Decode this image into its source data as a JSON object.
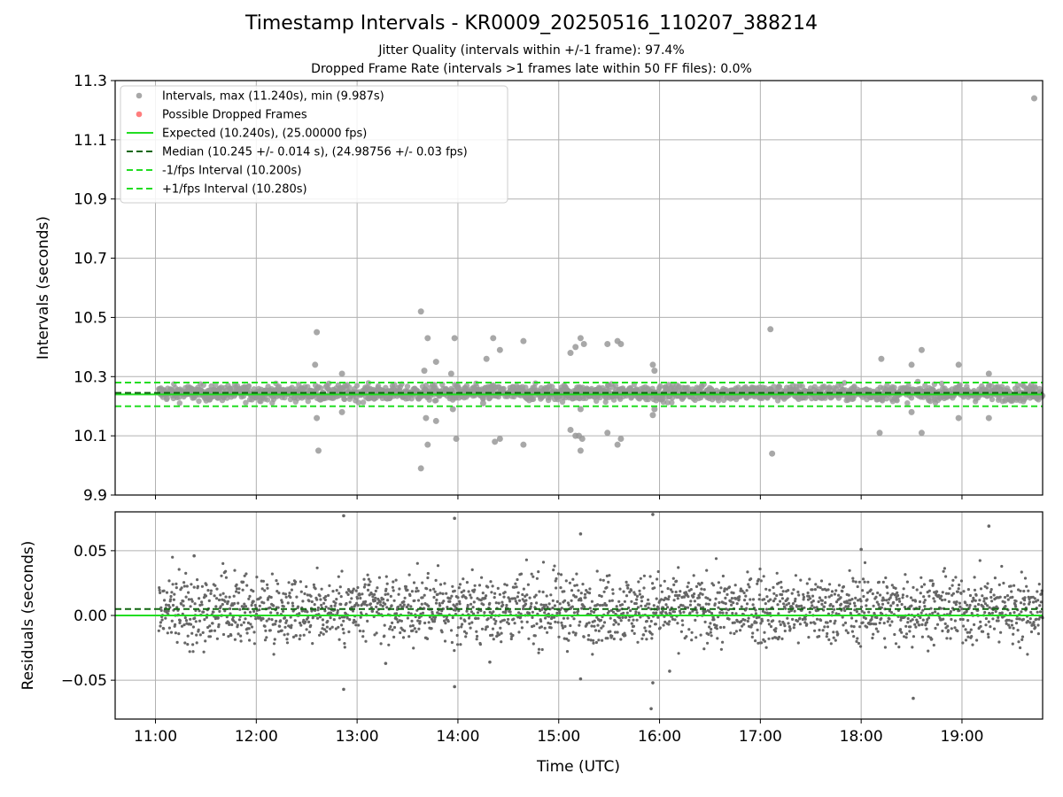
{
  "figure": {
    "title": "Timestamp Intervals - KR0009_20250516_110207_388214",
    "subtitle1": "Jitter Quality (intervals within +/-1 frame): 97.4%",
    "subtitle2": "Dropped Frame Rate (intervals >1 frames late within 50 FF files): 0.0%"
  },
  "colors": {
    "points": "#999999",
    "dropped": "#ff6666",
    "expected": "#22dd22",
    "median": "#116611",
    "band": "#22dd22",
    "residual": "#666666",
    "grid": "#b0b0b0"
  },
  "chart_data": [
    {
      "type": "scatter",
      "xlabel": "",
      "ylabel": "Intervals (seconds)",
      "x_range": [
        "10:36",
        "19:48"
      ],
      "ylim": [
        9.9,
        11.3
      ],
      "yticks": [
        9.9,
        10.1,
        10.3,
        10.5,
        10.7,
        10.9,
        11.1,
        11.3
      ],
      "ytick_labels": [
        "9.9",
        "10.1",
        "10.3",
        "10.5",
        "10.7",
        "10.9",
        "11.1",
        "11.3"
      ],
      "grid": true,
      "legend_position": "top-left",
      "legend": [
        {
          "label": "Intervals, max (11.240s), min (9.987s)",
          "style": "marker",
          "color": "#999999"
        },
        {
          "label": "Possible Dropped Frames",
          "style": "marker",
          "color": "#ff6666"
        },
        {
          "label": "Expected (10.240s), (25.00000 fps)",
          "style": "solid",
          "color": "#22dd22"
        },
        {
          "label": "Median (10.245 +/- 0.014 s), (24.98756 +/- 0.03 fps)",
          "style": "dashed",
          "color": "#116611"
        },
        {
          "label": "-1/fps Interval (10.200s)",
          "style": "dashed",
          "color": "#22dd22"
        },
        {
          "label": "+1/fps Interval (10.280s)",
          "style": "dashed",
          "color": "#22dd22"
        }
      ],
      "reference_lines": {
        "expected": 10.24,
        "median": 10.245,
        "minus_one_frame": 10.2,
        "plus_one_frame": 10.28
      },
      "outliers": [
        {
          "t": "12:36",
          "y": 10.45
        },
        {
          "t": "12:35",
          "y": 10.34
        },
        {
          "t": "12:36",
          "y": 10.16
        },
        {
          "t": "12:37",
          "y": 10.05
        },
        {
          "t": "12:51",
          "y": 10.31
        },
        {
          "t": "12:51",
          "y": 10.18
        },
        {
          "t": "13:38",
          "y": 10.52
        },
        {
          "t": "13:38",
          "y": 9.99
        },
        {
          "t": "13:42",
          "y": 10.43
        },
        {
          "t": "13:42",
          "y": 10.07
        },
        {
          "t": "13:40",
          "y": 10.32
        },
        {
          "t": "13:47",
          "y": 10.35
        },
        {
          "t": "13:41",
          "y": 10.16
        },
        {
          "t": "13:47",
          "y": 10.15
        },
        {
          "t": "13:58",
          "y": 10.43
        },
        {
          "t": "13:59",
          "y": 10.09
        },
        {
          "t": "13:56",
          "y": 10.31
        },
        {
          "t": "13:57",
          "y": 10.19
        },
        {
          "t": "14:17",
          "y": 10.36
        },
        {
          "t": "14:21",
          "y": 10.43
        },
        {
          "t": "14:25",
          "y": 10.39
        },
        {
          "t": "14:22",
          "y": 10.08
        },
        {
          "t": "14:25",
          "y": 10.09
        },
        {
          "t": "14:15",
          "y": 10.21
        },
        {
          "t": "14:39",
          "y": 10.42
        },
        {
          "t": "14:39",
          "y": 10.07
        },
        {
          "t": "15:07",
          "y": 10.38
        },
        {
          "t": "15:10",
          "y": 10.4
        },
        {
          "t": "15:13",
          "y": 10.43
        },
        {
          "t": "15:15",
          "y": 10.41
        },
        {
          "t": "15:13",
          "y": 10.05
        },
        {
          "t": "15:07",
          "y": 10.12
        },
        {
          "t": "15:10",
          "y": 10.1
        },
        {
          "t": "15:14",
          "y": 10.09
        },
        {
          "t": "15:13",
          "y": 10.19
        },
        {
          "t": "15:12",
          "y": 10.1
        },
        {
          "t": "15:29",
          "y": 10.41
        },
        {
          "t": "15:35",
          "y": 10.42
        },
        {
          "t": "15:37",
          "y": 10.41
        },
        {
          "t": "15:29",
          "y": 10.11
        },
        {
          "t": "15:35",
          "y": 10.07
        },
        {
          "t": "15:37",
          "y": 10.09
        },
        {
          "t": "15:56",
          "y": 10.34
        },
        {
          "t": "15:57",
          "y": 10.32
        },
        {
          "t": "15:56",
          "y": 10.17
        },
        {
          "t": "15:57",
          "y": 10.19
        },
        {
          "t": "17:06",
          "y": 10.46
        },
        {
          "t": "17:07",
          "y": 10.04
        },
        {
          "t": "18:12",
          "y": 10.36
        },
        {
          "t": "18:11",
          "y": 10.11
        },
        {
          "t": "18:30",
          "y": 10.34
        },
        {
          "t": "18:36",
          "y": 10.39
        },
        {
          "t": "18:30",
          "y": 10.18
        },
        {
          "t": "18:36",
          "y": 10.11
        },
        {
          "t": "18:58",
          "y": 10.34
        },
        {
          "t": "18:58",
          "y": 10.16
        },
        {
          "t": "19:16",
          "y": 10.31
        },
        {
          "t": "19:16",
          "y": 10.16
        },
        {
          "t": "19:43",
          "y": 11.24
        }
      ]
    },
    {
      "type": "scatter",
      "xlabel": "Time (UTC)",
      "ylabel": "Residuals (seconds)",
      "x_range": [
        "10:36",
        "19:48"
      ],
      "ylim": [
        -0.08,
        0.08
      ],
      "yticks": [
        -0.05,
        0.0,
        0.05
      ],
      "ytick_labels": [
        "−0.05",
        "0.00",
        "0.05"
      ],
      "xtick_labels": [
        "11:00",
        "12:00",
        "13:00",
        "14:00",
        "15:00",
        "16:00",
        "17:00",
        "18:00",
        "19:00"
      ],
      "grid": true,
      "reference_lines": {
        "zero": 0.0,
        "median_offset": 0.005
      },
      "outliers": [
        {
          "t": "12:52",
          "y": 0.077
        },
        {
          "t": "12:52",
          "y": -0.057
        },
        {
          "t": "13:58",
          "y": 0.075
        },
        {
          "t": "13:58",
          "y": -0.055
        },
        {
          "t": "15:13",
          "y": 0.063
        },
        {
          "t": "15:13",
          "y": -0.049
        },
        {
          "t": "15:56",
          "y": 0.078
        },
        {
          "t": "15:56",
          "y": -0.052
        },
        {
          "t": "15:55",
          "y": -0.072
        },
        {
          "t": "16:06",
          "y": -0.043
        },
        {
          "t": "13:17",
          "y": -0.037
        },
        {
          "t": "14:19",
          "y": -0.036
        },
        {
          "t": "18:31",
          "y": -0.064
        },
        {
          "t": "19:16",
          "y": 0.069
        },
        {
          "t": "18:00",
          "y": 0.051
        },
        {
          "t": "11:23",
          "y": 0.046
        }
      ]
    }
  ]
}
